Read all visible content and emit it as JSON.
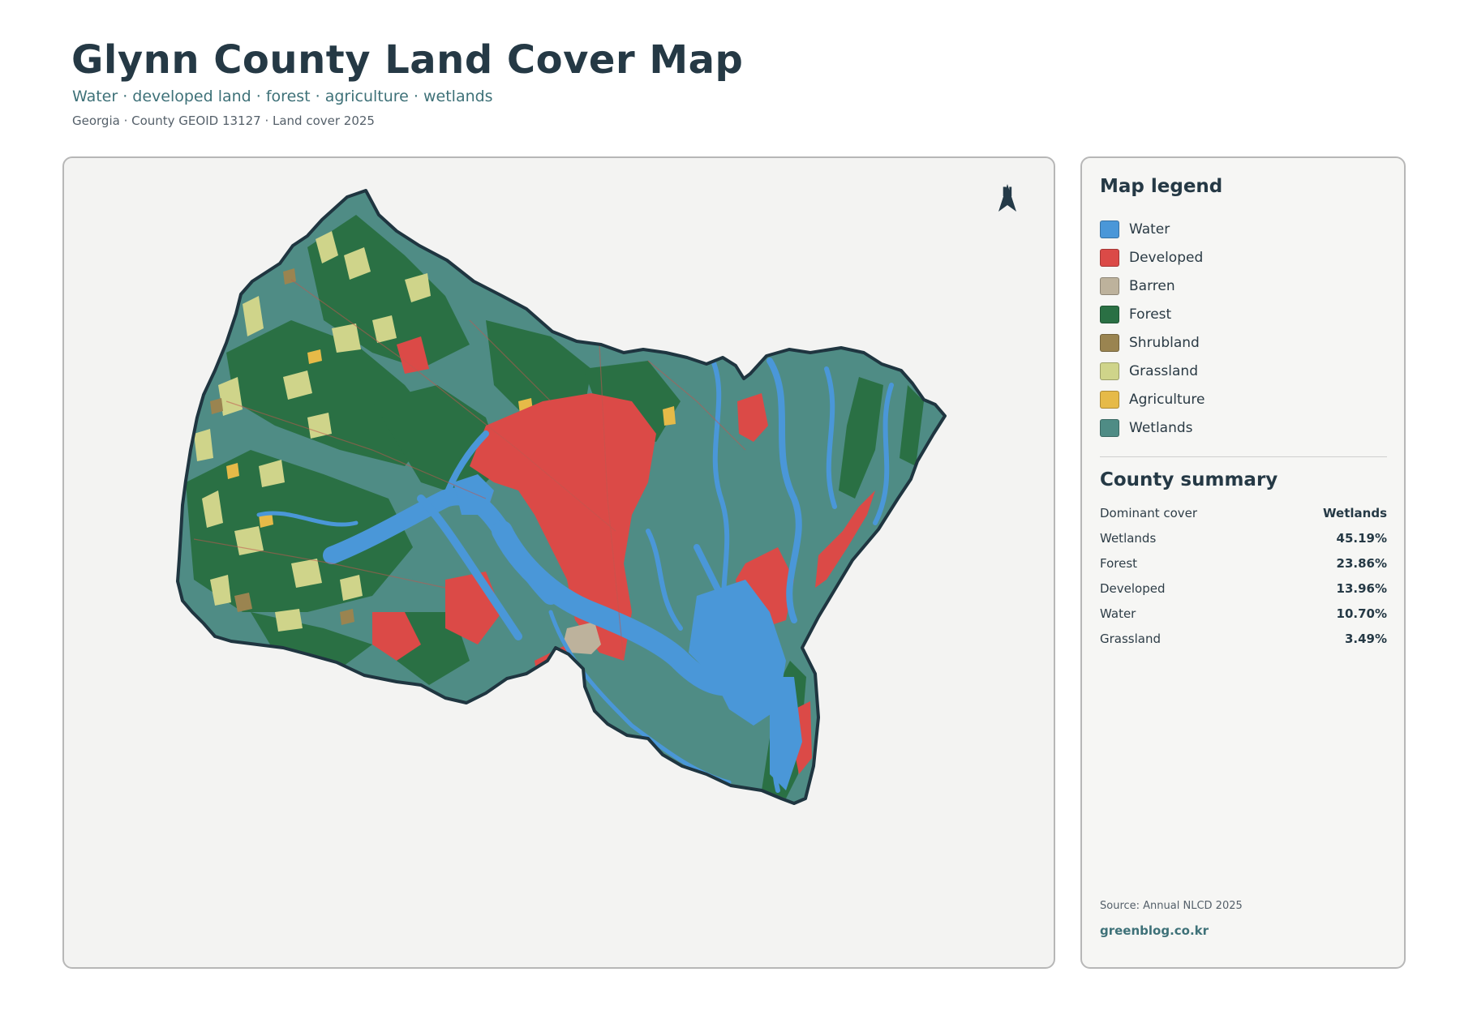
{
  "header": {
    "title": "Glynn County Land Cover Map",
    "subtitle": "Water · developed land · forest · agriculture · wetlands",
    "meta": "Georgia · County GEOID 13127 · Land cover 2025"
  },
  "map": {
    "north_label": "N",
    "colors": {
      "water": "#4a97d8",
      "developed": "#db4a47",
      "barren": "#bdb29c",
      "forest": "#2a7044",
      "shrubland": "#9a8450",
      "grassland": "#cfd48a",
      "agriculture": "#e6ba48",
      "wetlands": "#4f8c85",
      "outline": "#1f3540"
    }
  },
  "legend": {
    "title": "Map legend",
    "items": [
      {
        "label": "Water",
        "color": "#4a97d8"
      },
      {
        "label": "Developed",
        "color": "#db4a47"
      },
      {
        "label": "Barren",
        "color": "#bdb29c"
      },
      {
        "label": "Forest",
        "color": "#2a7044"
      },
      {
        "label": "Shrubland",
        "color": "#9a8450"
      },
      {
        "label": "Grassland",
        "color": "#cfd48a"
      },
      {
        "label": "Agriculture",
        "color": "#e6ba48"
      },
      {
        "label": "Wetlands",
        "color": "#4f8c85"
      }
    ]
  },
  "summary": {
    "title": "County summary",
    "rows": [
      {
        "key": "Dominant cover",
        "value": "Wetlands"
      },
      {
        "key": "Wetlands",
        "value": "45.19%"
      },
      {
        "key": "Forest",
        "value": "23.86%"
      },
      {
        "key": "Developed",
        "value": "13.96%"
      },
      {
        "key": "Water",
        "value": "10.70%"
      },
      {
        "key": "Grassland",
        "value": "3.49%"
      }
    ]
  },
  "footer": {
    "source": "Source: Annual NLCD 2025",
    "site": "greenblog.co.kr"
  }
}
